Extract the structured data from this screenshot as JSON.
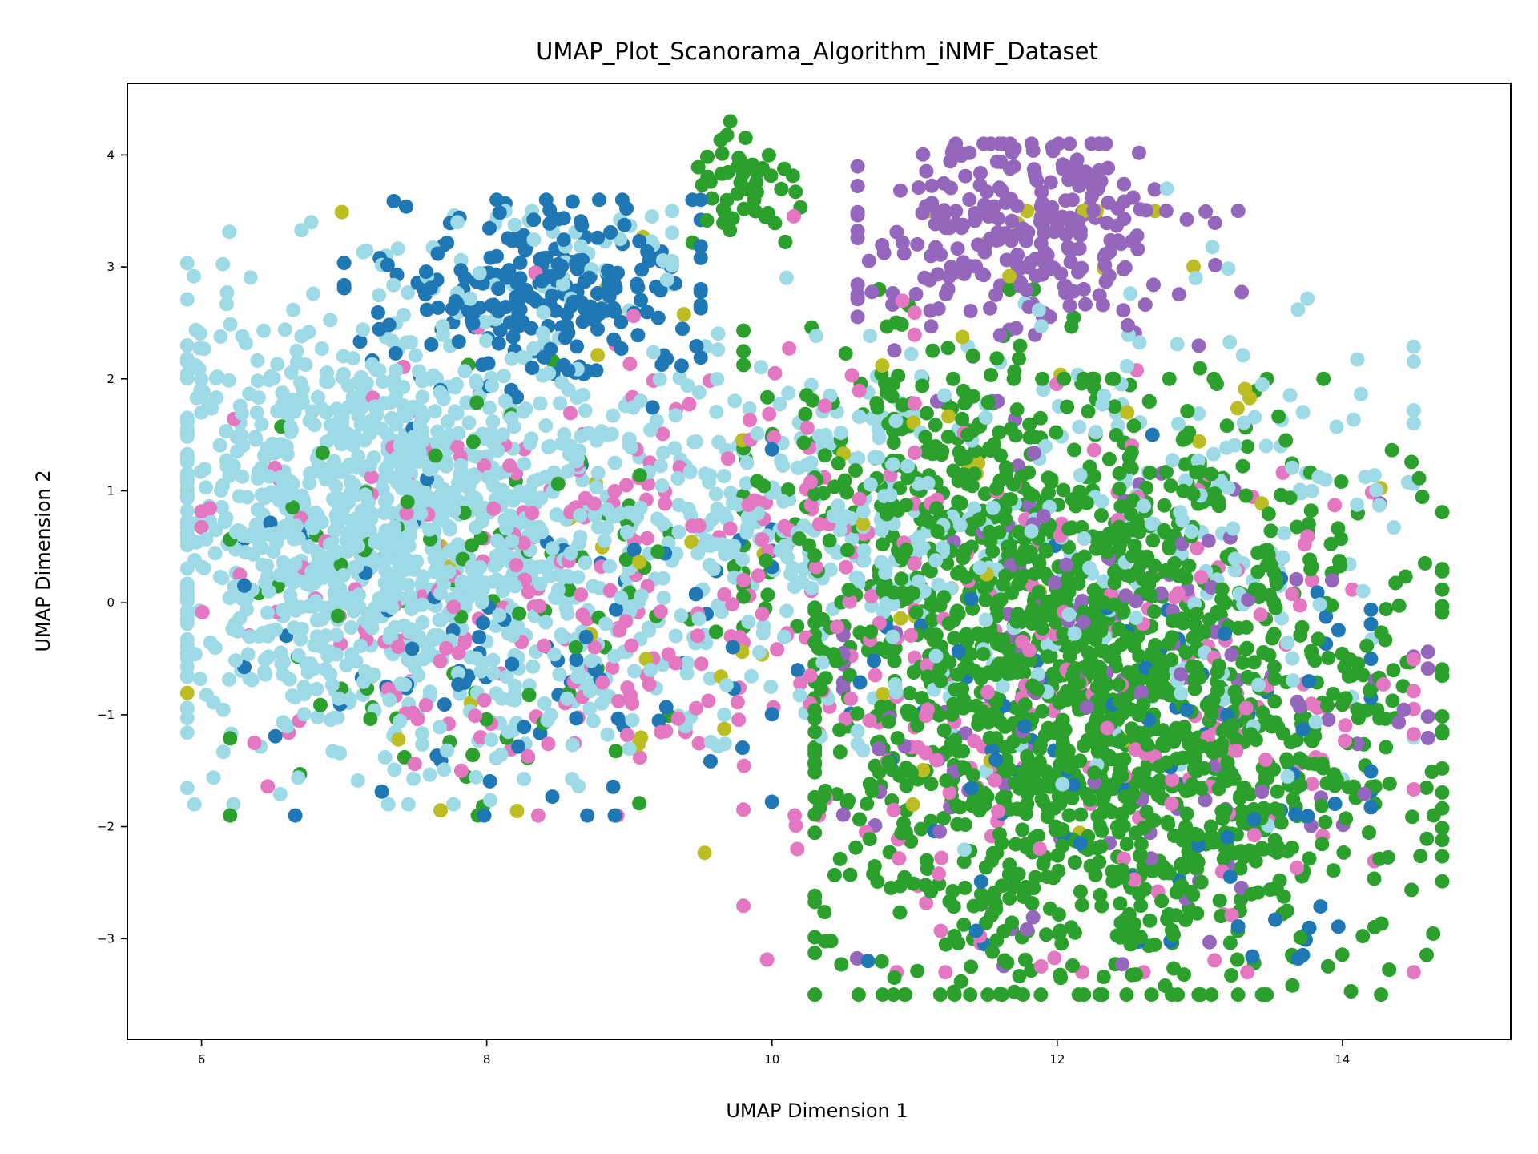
{
  "chart_data": {
    "type": "scatter",
    "title": "UMAP_Plot_Scanorama_Algorithm_iNMF_Dataset",
    "xlabel": "UMAP Dimension 1",
    "ylabel": "UMAP Dimension 2",
    "xlim": [
      5.48,
      15.18
    ],
    "ylim": [
      -3.9,
      4.64
    ],
    "xticks": [
      6,
      8,
      10,
      12,
      14
    ],
    "yticks": [
      -3,
      -2,
      -1,
      0,
      1,
      2,
      3,
      4
    ],
    "xtick_labels": [
      "6",
      "8",
      "10",
      "12",
      "14"
    ],
    "ytick_labels": [
      "−3",
      "−2",
      "−1",
      "0",
      "1",
      "2",
      "3",
      "4"
    ],
    "grid": false,
    "legend": "none",
    "series": [
      {
        "color": "#2ca02c",
        "clusters": [
          {
            "cx": 12.4,
            "cy": -1.0,
            "sx": 1.05,
            "sy": 1.25,
            "n": 1500,
            "xmin": 10.3,
            "xmax": 14.7,
            "ymin": -3.5,
            "ymax": 2.0
          },
          {
            "cx": 11.2,
            "cy": 0.9,
            "sx": 0.75,
            "sy": 0.85,
            "n": 300,
            "xmin": 9.8,
            "xmax": 13.0,
            "ymin": -1.0,
            "ymax": 2.8
          },
          {
            "cx": 9.8,
            "cy": 3.7,
            "sx": 0.18,
            "sy": 0.3,
            "n": 50,
            "xmin": 9.4,
            "xmax": 10.2,
            "ymin": 3.0,
            "ymax": 4.3
          },
          {
            "cx": 8.0,
            "cy": -0.2,
            "sx": 1.1,
            "sy": 1.1,
            "n": 90,
            "xmin": 6.2,
            "xmax": 10.0,
            "ymin": -1.9,
            "ymax": 2.6
          }
        ]
      },
      {
        "color": "#9467bd",
        "clusters": [
          {
            "cx": 11.7,
            "cy": 3.3,
            "sx": 0.6,
            "sy": 0.45,
            "n": 270,
            "xmin": 10.6,
            "xmax": 13.3,
            "ymin": 2.2,
            "ymax": 4.1
          },
          {
            "cx": 12.6,
            "cy": -0.6,
            "sx": 1.1,
            "sy": 1.2,
            "n": 150,
            "xmin": 10.5,
            "xmax": 14.6,
            "ymin": -3.3,
            "ymax": 1.8
          }
        ]
      },
      {
        "color": "#1f77b4",
        "clusters": [
          {
            "cx": 8.4,
            "cy": 2.8,
            "sx": 0.55,
            "sy": 0.4,
            "n": 240,
            "xmin": 7.0,
            "xmax": 9.5,
            "ymin": 1.9,
            "ymax": 3.6
          },
          {
            "cx": 8.2,
            "cy": -0.3,
            "sx": 1.1,
            "sy": 1.0,
            "n": 90,
            "xmin": 6.3,
            "xmax": 10.0,
            "ymin": -1.9,
            "ymax": 2.0
          },
          {
            "cx": 12.5,
            "cy": -1.2,
            "sx": 1.1,
            "sy": 1.0,
            "n": 90,
            "xmin": 9.7,
            "xmax": 14.2,
            "ymin": -3.2,
            "ymax": 1.5
          },
          {
            "cx": 13.5,
            "cy": -3.0,
            "sx": 0.3,
            "sy": 0.1,
            "n": 8,
            "xmin": 13.0,
            "xmax": 13.9,
            "ymin": -3.2,
            "ymax": -2.8
          }
        ]
      },
      {
        "color": "#e377c2",
        "clusters": [
          {
            "cx": 8.7,
            "cy": 0.3,
            "sx": 1.15,
            "sy": 1.05,
            "n": 260,
            "xmin": 6.0,
            "xmax": 11.0,
            "ymin": -1.9,
            "ymax": 3.6
          },
          {
            "cx": 12.2,
            "cy": -0.8,
            "sx": 1.2,
            "sy": 1.2,
            "n": 220,
            "xmin": 9.8,
            "xmax": 14.5,
            "ymin": -3.3,
            "ymax": 2.2
          }
        ]
      },
      {
        "color": "#bcbd22",
        "clusters": [
          {
            "cx": 10.5,
            "cy": 0.6,
            "sx": 2.0,
            "sy": 1.5,
            "n": 70,
            "xmin": 5.9,
            "xmax": 14.4,
            "ymin": -2.9,
            "ymax": 3.5
          }
        ]
      },
      {
        "color": "#9edae5",
        "clusters": [
          {
            "cx": 7.4,
            "cy": 0.7,
            "sx": 0.95,
            "sy": 0.95,
            "n": 1300,
            "xmin": 5.9,
            "xmax": 9.9,
            "ymin": -1.8,
            "ymax": 3.4
          },
          {
            "cx": 10.2,
            "cy": 0.6,
            "sx": 0.7,
            "sy": 0.8,
            "n": 260,
            "xmin": 9.0,
            "xmax": 11.5,
            "ymin": -1.9,
            "ymax": 3.0
          },
          {
            "cx": 12.6,
            "cy": 0.6,
            "sx": 1.0,
            "sy": 1.1,
            "n": 230,
            "xmin": 10.6,
            "xmax": 14.5,
            "ymin": -2.7,
            "ymax": 3.7
          },
          {
            "cx": 8.6,
            "cy": 3.1,
            "sx": 0.5,
            "sy": 0.3,
            "n": 40,
            "xmin": 7.6,
            "xmax": 9.3,
            "ymin": 2.6,
            "ymax": 3.5
          }
        ]
      }
    ]
  }
}
